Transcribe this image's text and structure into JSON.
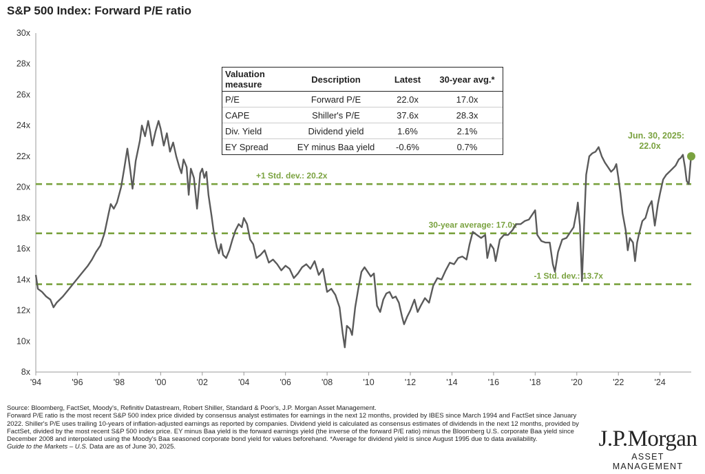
{
  "chart_data": {
    "type": "line",
    "title": "S&P 500 Index: Forward P/E ratio",
    "ylim": [
      8,
      30
    ],
    "yticks": [
      8,
      10,
      12,
      14,
      16,
      18,
      20,
      22,
      24,
      26,
      28,
      30
    ],
    "ytick_labels": [
      "8x",
      "10x",
      "12x",
      "14x",
      "16x",
      "18x",
      "20x",
      "22x",
      "24x",
      "26x",
      "28x",
      "30x"
    ],
    "xlim": [
      1994,
      2025.5
    ],
    "xticks": [
      1994,
      1996,
      1998,
      2000,
      2002,
      2004,
      2006,
      2008,
      2010,
      2012,
      2014,
      2016,
      2018,
      2020,
      2022,
      2024
    ],
    "xtick_labels": [
      "'94",
      "'96",
      "'98",
      "'00",
      "'02",
      "'04",
      "'06",
      "'08",
      "'10",
      "'12",
      "'14",
      "'16",
      "'18",
      "'20",
      "'22",
      "'24"
    ],
    "grid": false,
    "line_color": "#5a5a5a",
    "ref_color": "#7aa23f",
    "series": [
      {
        "points": [
          [
            1994.0,
            14.3
          ],
          [
            1994.1,
            13.4
          ],
          [
            1994.3,
            13.2
          ],
          [
            1994.5,
            12.9
          ],
          [
            1994.7,
            12.7
          ],
          [
            1994.85,
            12.2
          ],
          [
            1995.0,
            12.5
          ],
          [
            1995.3,
            12.9
          ],
          [
            1995.6,
            13.4
          ],
          [
            1995.9,
            13.9
          ],
          [
            1996.2,
            14.4
          ],
          [
            1996.5,
            14.9
          ],
          [
            1996.7,
            15.3
          ],
          [
            1996.9,
            15.8
          ],
          [
            1997.1,
            16.2
          ],
          [
            1997.3,
            17.0
          ],
          [
            1997.5,
            18.3
          ],
          [
            1997.6,
            18.9
          ],
          [
            1997.75,
            18.6
          ],
          [
            1997.9,
            19.0
          ],
          [
            1998.1,
            20.0
          ],
          [
            1998.25,
            21.2
          ],
          [
            1998.4,
            22.5
          ],
          [
            1998.55,
            21.0
          ],
          [
            1998.65,
            19.9
          ],
          [
            1998.8,
            21.7
          ],
          [
            1999.0,
            23.0
          ],
          [
            1999.1,
            24.0
          ],
          [
            1999.25,
            23.3
          ],
          [
            1999.4,
            24.3
          ],
          [
            1999.5,
            23.6
          ],
          [
            1999.6,
            22.7
          ],
          [
            1999.75,
            23.6
          ],
          [
            1999.9,
            24.3
          ],
          [
            2000.0,
            23.8
          ],
          [
            2000.15,
            22.7
          ],
          [
            2000.3,
            23.5
          ],
          [
            2000.45,
            22.3
          ],
          [
            2000.6,
            22.9
          ],
          [
            2000.75,
            22.0
          ],
          [
            2000.9,
            21.3
          ],
          [
            2001.0,
            20.9
          ],
          [
            2001.1,
            21.8
          ],
          [
            2001.25,
            21.3
          ],
          [
            2001.35,
            19.5
          ],
          [
            2001.45,
            21.2
          ],
          [
            2001.6,
            20.6
          ],
          [
            2001.75,
            18.6
          ],
          [
            2001.9,
            20.9
          ],
          [
            2002.0,
            21.2
          ],
          [
            2002.1,
            20.6
          ],
          [
            2002.2,
            21.0
          ],
          [
            2002.3,
            19.5
          ],
          [
            2002.45,
            18.1
          ],
          [
            2002.55,
            17.1
          ],
          [
            2002.7,
            16.1
          ],
          [
            2002.8,
            15.7
          ],
          [
            2002.9,
            16.3
          ],
          [
            2003.0,
            15.6
          ],
          [
            2003.15,
            15.4
          ],
          [
            2003.3,
            15.9
          ],
          [
            2003.45,
            16.6
          ],
          [
            2003.6,
            17.2
          ],
          [
            2003.75,
            17.6
          ],
          [
            2003.9,
            17.4
          ],
          [
            2004.0,
            18.0
          ],
          [
            2004.15,
            17.6
          ],
          [
            2004.3,
            16.6
          ],
          [
            2004.45,
            16.3
          ],
          [
            2004.6,
            15.4
          ],
          [
            2004.8,
            15.6
          ],
          [
            2005.0,
            15.9
          ],
          [
            2005.2,
            15.1
          ],
          [
            2005.4,
            15.3
          ],
          [
            2005.6,
            15.0
          ],
          [
            2005.8,
            14.6
          ],
          [
            2006.0,
            14.9
          ],
          [
            2006.2,
            14.7
          ],
          [
            2006.4,
            14.1
          ],
          [
            2006.6,
            14.4
          ],
          [
            2006.8,
            14.8
          ],
          [
            2007.0,
            15.0
          ],
          [
            2007.2,
            14.7
          ],
          [
            2007.4,
            15.2
          ],
          [
            2007.6,
            14.3
          ],
          [
            2007.8,
            14.7
          ],
          [
            2008.0,
            13.2
          ],
          [
            2008.2,
            13.4
          ],
          [
            2008.4,
            13.0
          ],
          [
            2008.6,
            12.2
          ],
          [
            2008.75,
            10.5
          ],
          [
            2008.85,
            9.6
          ],
          [
            2008.95,
            11.0
          ],
          [
            2009.1,
            10.8
          ],
          [
            2009.2,
            10.4
          ],
          [
            2009.35,
            12.2
          ],
          [
            2009.5,
            13.4
          ],
          [
            2009.65,
            14.5
          ],
          [
            2009.8,
            14.8
          ],
          [
            2009.95,
            14.5
          ],
          [
            2010.1,
            14.2
          ],
          [
            2010.25,
            14.4
          ],
          [
            2010.4,
            12.3
          ],
          [
            2010.55,
            11.9
          ],
          [
            2010.7,
            12.7
          ],
          [
            2010.85,
            13.1
          ],
          [
            2011.0,
            13.2
          ],
          [
            2011.15,
            12.8
          ],
          [
            2011.3,
            12.9
          ],
          [
            2011.45,
            12.5
          ],
          [
            2011.6,
            11.6
          ],
          [
            2011.7,
            11.1
          ],
          [
            2011.85,
            11.6
          ],
          [
            2012.0,
            12.0
          ],
          [
            2012.2,
            12.7
          ],
          [
            2012.35,
            11.9
          ],
          [
            2012.5,
            12.3
          ],
          [
            2012.7,
            12.8
          ],
          [
            2012.9,
            12.5
          ],
          [
            2013.1,
            13.6
          ],
          [
            2013.3,
            14.1
          ],
          [
            2013.5,
            14.0
          ],
          [
            2013.7,
            14.6
          ],
          [
            2013.9,
            15.1
          ],
          [
            2014.1,
            15.0
          ],
          [
            2014.3,
            15.4
          ],
          [
            2014.5,
            15.5
          ],
          [
            2014.7,
            15.3
          ],
          [
            2014.85,
            16.3
          ],
          [
            2015.0,
            17.1
          ],
          [
            2015.2,
            16.9
          ],
          [
            2015.4,
            16.7
          ],
          [
            2015.6,
            16.9
          ],
          [
            2015.7,
            15.4
          ],
          [
            2015.85,
            16.3
          ],
          [
            2016.0,
            16.0
          ],
          [
            2016.1,
            15.2
          ],
          [
            2016.3,
            16.6
          ],
          [
            2016.5,
            16.9
          ],
          [
            2016.7,
            16.9
          ],
          [
            2016.9,
            17.2
          ],
          [
            2017.1,
            17.6
          ],
          [
            2017.3,
            17.6
          ],
          [
            2017.5,
            17.8
          ],
          [
            2017.7,
            17.9
          ],
          [
            2017.9,
            18.3
          ],
          [
            2018.0,
            18.5
          ],
          [
            2018.1,
            16.9
          ],
          [
            2018.3,
            16.5
          ],
          [
            2018.5,
            16.4
          ],
          [
            2018.7,
            16.4
          ],
          [
            2018.85,
            15.0
          ],
          [
            2018.95,
            14.5
          ],
          [
            2019.1,
            15.8
          ],
          [
            2019.3,
            16.6
          ],
          [
            2019.5,
            16.7
          ],
          [
            2019.7,
            17.1
          ],
          [
            2019.85,
            17.4
          ],
          [
            2020.0,
            18.5
          ],
          [
            2020.05,
            19.0
          ],
          [
            2020.15,
            17.5
          ],
          [
            2020.25,
            13.9
          ],
          [
            2020.35,
            17.5
          ],
          [
            2020.45,
            20.8
          ],
          [
            2020.6,
            22.0
          ],
          [
            2020.75,
            22.2
          ],
          [
            2020.9,
            22.3
          ],
          [
            2021.05,
            22.6
          ],
          [
            2021.2,
            22.0
          ],
          [
            2021.35,
            21.6
          ],
          [
            2021.5,
            21.3
          ],
          [
            2021.65,
            21.0
          ],
          [
            2021.8,
            21.2
          ],
          [
            2021.9,
            21.5
          ],
          [
            2022.0,
            20.6
          ],
          [
            2022.1,
            19.6
          ],
          [
            2022.2,
            18.3
          ],
          [
            2022.35,
            17.2
          ],
          [
            2022.45,
            15.9
          ],
          [
            2022.55,
            16.7
          ],
          [
            2022.7,
            16.4
          ],
          [
            2022.8,
            15.2
          ],
          [
            2022.9,
            16.4
          ],
          [
            2023.0,
            17.0
          ],
          [
            2023.15,
            17.8
          ],
          [
            2023.3,
            18.0
          ],
          [
            2023.45,
            18.7
          ],
          [
            2023.6,
            19.1
          ],
          [
            2023.75,
            17.5
          ],
          [
            2023.9,
            18.9
          ],
          [
            2024.0,
            19.6
          ],
          [
            2024.15,
            20.5
          ],
          [
            2024.3,
            20.8
          ],
          [
            2024.45,
            21.0
          ],
          [
            2024.6,
            21.2
          ],
          [
            2024.75,
            21.4
          ],
          [
            2024.9,
            21.8
          ],
          [
            2025.0,
            21.9
          ],
          [
            2025.1,
            22.1
          ],
          [
            2025.2,
            21.3
          ],
          [
            2025.28,
            20.4
          ],
          [
            2025.38,
            20.2
          ],
          [
            2025.48,
            21.8
          ],
          [
            2025.5,
            22.0
          ]
        ]
      }
    ],
    "reference_lines": [
      {
        "value": 20.2,
        "label": "+1 Std. dev.: 20.2x",
        "label_x": 2006.3
      },
      {
        "value": 17.0,
        "label": "30-year average: 17.0x",
        "label_x": 2015.0
      },
      {
        "value": 13.7,
        "label": "-1 Std. dev.: 13.7x",
        "label_x": 2019.6
      }
    ],
    "latest_point": {
      "x": 2025.5,
      "y": 22.0,
      "label_line1": "Jun. 30, 2025:",
      "label_line2": "22.0x"
    }
  },
  "valuation_table": {
    "headers": [
      "Valuation measure",
      "Description",
      "Latest",
      "30-year avg.*"
    ],
    "rows": [
      [
        "P/E",
        "Forward P/E",
        "22.0x",
        "17.0x"
      ],
      [
        "CAPE",
        "Shiller's P/E",
        "37.6x",
        "28.3x"
      ],
      [
        "Div. Yield",
        "Dividend yield",
        "1.6%",
        "2.1%"
      ],
      [
        "EY Spread",
        "EY minus Baa yield",
        "-0.6%",
        "0.7%"
      ]
    ]
  },
  "footnotes": {
    "source": "Source: Bloomberg, FactSet, Moody's, Refinitiv Datastream, Robert Shiller, Standard & Poor's, J.P. Morgan Asset Management.",
    "body": "Forward P/E ratio is the most recent S&P 500 index price divided by consensus analyst estimates for earnings in the next 12 months, provided by IBES since March 1994 and FactSet since January 2022. Shiller's P/E uses trailing 10-years of inflation-adjusted earnings as reported by companies. Dividend yield is calculated as consensus estimates of dividends in the next 12 months, provided by FactSet, divided by the most recent S&P 500 index price. EY minus Baa yield is the forward earnings yield (the inverse of the forward P/E ratio) minus the Bloomberg U.S. corporate Baa yield since December 2008 and interpolated using the Moody's Baa seasoned corporate bond yield for values beforehand. *Average for dividend yield is since August 1995 due to data availability.",
    "guide": "Guide to the Markets – U.S.",
    "asof": " Data are as of June 30, 2025."
  },
  "logo": {
    "main": "J.P.Morgan",
    "sub": "ASSET MANAGEMENT"
  }
}
